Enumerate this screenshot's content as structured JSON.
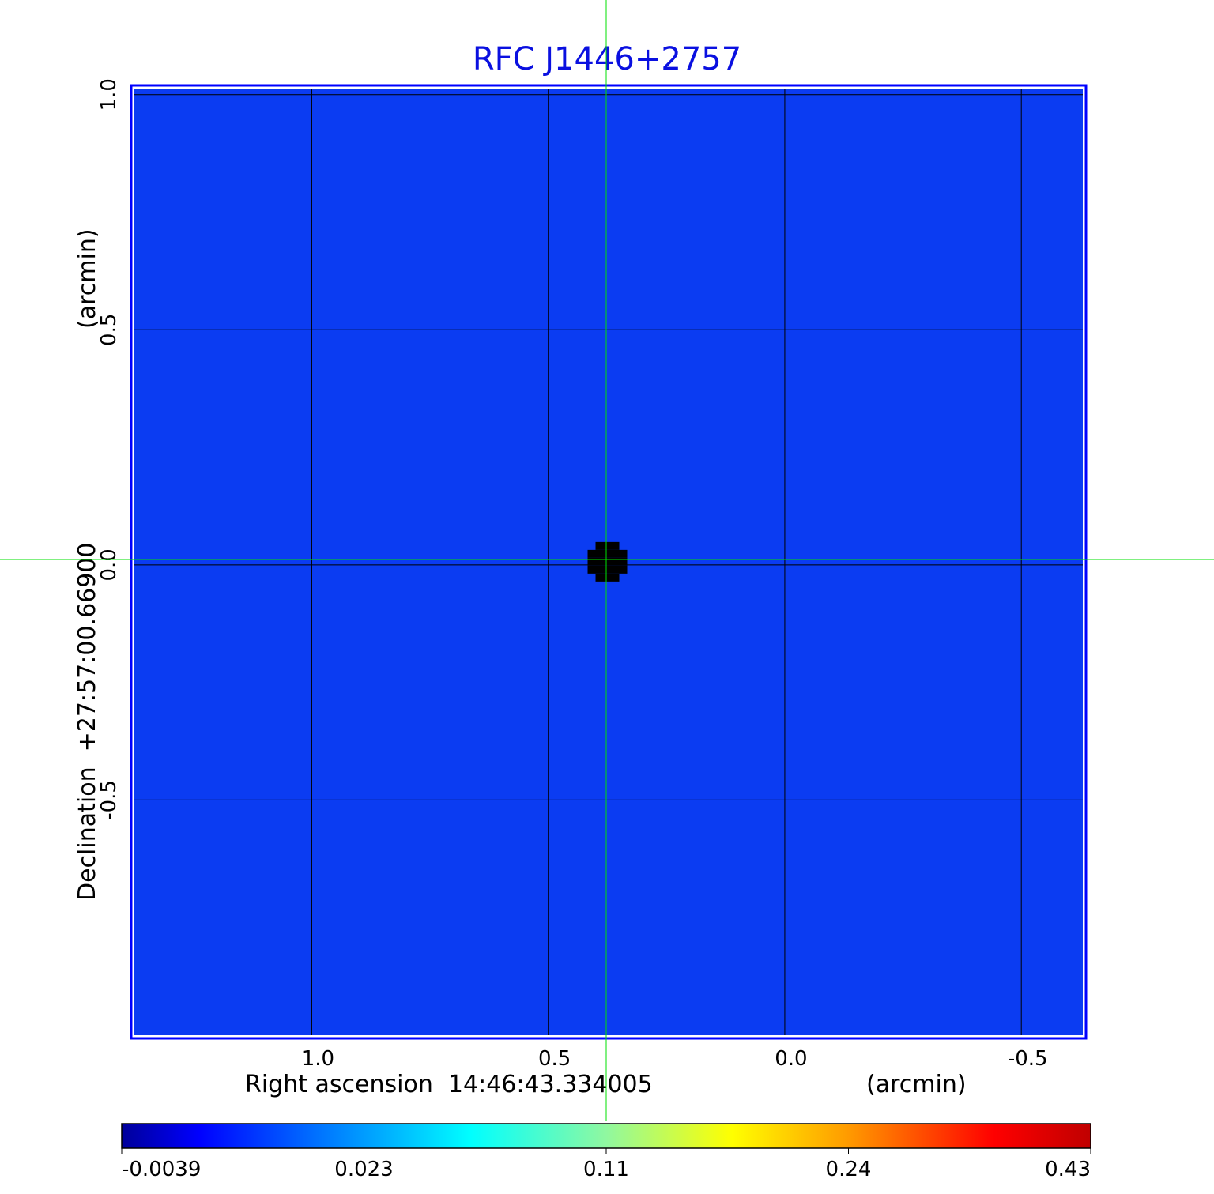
{
  "chart_data": {
    "type": "heatmap",
    "title": "RFC J1446+2757",
    "xlabel": "Right ascension  14:46:43.334005",
    "xunit": "(arcmin)",
    "ylabel": "Declination  +27:57:00.66900",
    "yunit": "(arcmin)",
    "xticks": [
      "1.0",
      "0.5",
      "0.0",
      "-0.5"
    ],
    "xtick_values": [
      1.0,
      0.5,
      0.0,
      -0.5
    ],
    "yticks": [
      "1.0",
      "0.5",
      "0.0",
      "-0.5"
    ],
    "ytick_values": [
      1.0,
      0.5,
      0.0,
      -0.5
    ],
    "xlim": [
      1.375,
      -0.63
    ],
    "ylim": [
      -1.0,
      1.013
    ],
    "grid": true,
    "colormap": "jet",
    "colorbar": {
      "ticks": [
        "-0.0039",
        "0.023",
        "0.11",
        "0.24",
        "0.43"
      ],
      "range": [
        -0.0039,
        0.43
      ]
    },
    "source": {
      "x": 0.375,
      "y": 0.0,
      "peak": 0.43
    },
    "crosshair": {
      "x": 0.375,
      "y": 0.013,
      "color": "#00e000"
    },
    "colors": {
      "title": "#0a10e0",
      "background_level": "#0b3cf2"
    }
  }
}
